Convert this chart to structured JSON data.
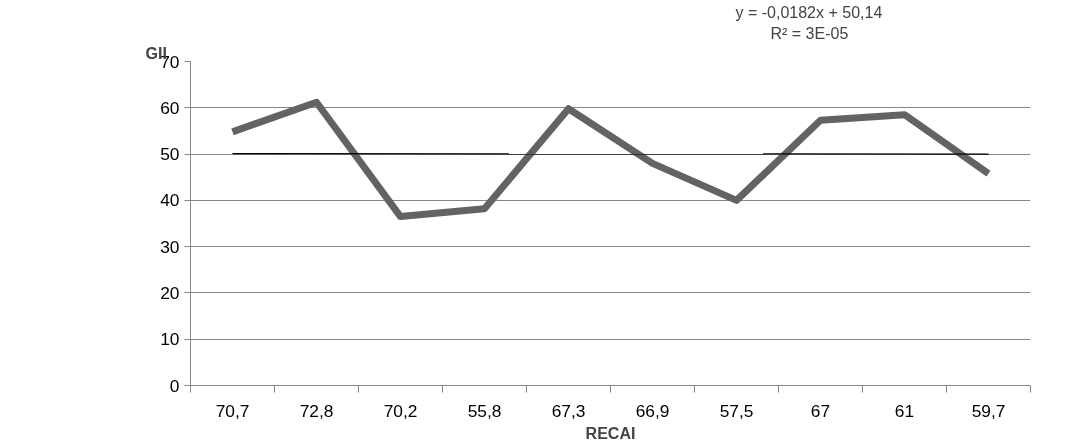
{
  "chart_data": {
    "type": "line",
    "xlabel": "RECAI",
    "ylabel": "GII",
    "categories": [
      "70,7",
      "72,8",
      "70,2",
      "55,8",
      "67,3",
      "66,9",
      "57,5",
      "67",
      "61",
      "59,7"
    ],
    "series": [
      {
        "color": "#636363",
        "values": [
          54.8,
          61.2,
          36.5,
          38.2,
          59.8,
          48.0,
          40.0,
          57.3,
          58.5,
          45.8
        ]
      },
      {
        "type": "line",
        "color": "#000000",
        "x": [
          "70,7",
          "59,7"
        ],
        "values": [
          50.1,
          50.0
        ]
      }
    ],
    "ylim": [
      0,
      70
    ],
    "yticks": [
      0,
      10,
      20,
      30,
      40,
      50,
      60,
      70
    ],
    "grid": "y",
    "marker": "none",
    "line_style": "solid",
    "annotations": [
      "y = -0,0182x + 50,14",
      "R² = 3E-05"
    ]
  }
}
